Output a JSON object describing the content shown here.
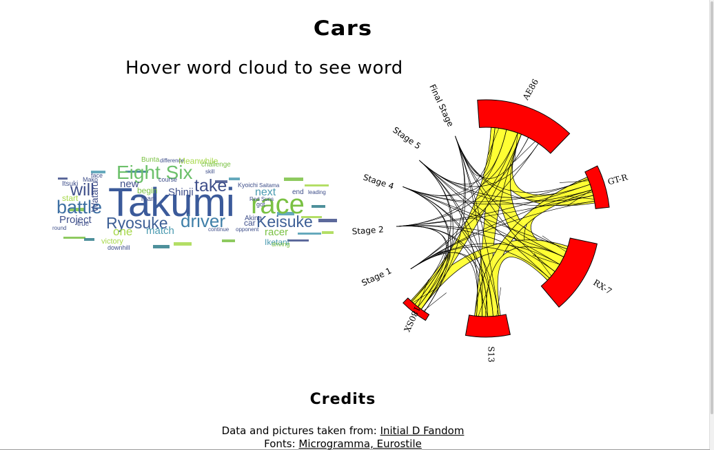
{
  "page": {
    "title": "Cars",
    "hover_hint": "Hover word cloud to see word"
  },
  "wordcloud": {
    "words": [
      {
        "text": "Takumi",
        "color": "#3b5a9a"
      },
      {
        "text": "race",
        "color": "#7ac143"
      },
      {
        "text": "Eight Six",
        "color": "#6cc06a"
      },
      {
        "text": "battle",
        "color": "#3d6fa3"
      },
      {
        "text": "driver",
        "color": "#3f7fa8"
      },
      {
        "text": "Keisuke",
        "color": "#3c5e95"
      },
      {
        "text": "Ryosuke",
        "color": "#3c5e95"
      },
      {
        "text": "take",
        "color": "#3f4f8a"
      },
      {
        "text": "will",
        "color": "#3f4f8a"
      },
      {
        "text": "next",
        "color": "#4a9ab0"
      },
      {
        "text": "Project",
        "color": "#3f4f8a"
      },
      {
        "text": "new",
        "color": "#3f4f8a"
      },
      {
        "text": "match",
        "color": "#4a9ab0"
      },
      {
        "text": "Shinji",
        "color": "#3f4f8a"
      },
      {
        "text": "one",
        "color": "#a6d84a"
      },
      {
        "text": "racer",
        "color": "#7ac143"
      },
      {
        "text": "Meanwhile",
        "color": "#a6d84a"
      },
      {
        "text": "Wataru",
        "color": "#3f4f8a"
      },
      {
        "text": "Iketani",
        "color": "#4a9ab0"
      },
      {
        "text": "car",
        "color": "#3f4f8a"
      },
      {
        "text": "victory",
        "color": "#a6d84a"
      },
      {
        "text": "begin",
        "color": "#7ac143"
      },
      {
        "text": "Akina",
        "color": "#3f4f8a"
      },
      {
        "text": "Team",
        "color": "#3f4f8a"
      },
      {
        "text": "Kyoichi",
        "color": "#3f4f8a"
      },
      {
        "text": "downhill",
        "color": "#3f4f8a"
      },
      {
        "text": "Bunta",
        "color": "#7ac143"
      },
      {
        "text": "course",
        "color": "#3f4f8a"
      },
      {
        "text": "difference",
        "color": "#3f4f8a"
      },
      {
        "text": "start",
        "color": "#a6d84a"
      },
      {
        "text": "Itsuki",
        "color": "#3f4f8a"
      },
      {
        "text": "end",
        "color": "#3f4f8a"
      },
      {
        "text": "got",
        "color": "#3f4f8a"
      },
      {
        "text": "challenge",
        "color": "#7ac143"
      },
      {
        "text": "Mako",
        "color": "#3f4f8a"
      },
      {
        "text": "Saitama",
        "color": "#3f4f8a"
      },
      {
        "text": "Red Suns",
        "color": "#3f4f8a"
      },
      {
        "text": "driving",
        "color": "#7ac143"
      },
      {
        "text": "true",
        "color": "#3f4f8a"
      },
      {
        "text": "face",
        "color": "#3f4f8a"
      },
      {
        "text": "skill",
        "color": "#3f4f8a"
      },
      {
        "text": "round",
        "color": "#3f4f8a"
      },
      {
        "text": "leading",
        "color": "#3f4f8a"
      },
      {
        "text": "continue",
        "color": "#3f4f8a"
      },
      {
        "text": "opponent",
        "color": "#3f4f8a"
      }
    ]
  },
  "chord": {
    "stages": [
      "Final Stage",
      "Stage 5",
      "Stage 4",
      "Stage 2",
      "Stage 1"
    ],
    "cars": [
      "AE86",
      "GT-R",
      "RX-7",
      "S13",
      "180SX"
    ],
    "ribbon_color": "#ffff33",
    "arc_color": "#ff0000"
  },
  "credits": {
    "title": "Credits",
    "data_prefix": "Data and pictures taken from: ",
    "data_link": "Initial D Fandom",
    "fonts_prefix": "Fonts: ",
    "fonts_link": "Microgramma, Eurostile"
  }
}
